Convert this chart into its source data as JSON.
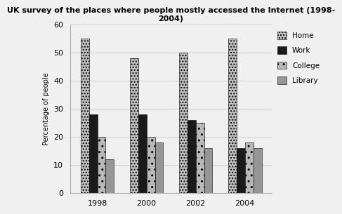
{
  "title": "UK survey of the places where people mostly accessed the Internet (1998-\n2004)",
  "ylabel": "Percentage of people",
  "years": [
    1998,
    2000,
    2002,
    2004
  ],
  "categories": [
    "Home",
    "Work",
    "College",
    "Library"
  ],
  "values": {
    "Home": [
      55,
      48,
      50,
      55
    ],
    "Work": [
      28,
      28,
      26,
      16
    ],
    "College": [
      20,
      20,
      25,
      18
    ],
    "Library": [
      12,
      18,
      16,
      16
    ]
  },
  "ylim": [
    0,
    60
  ],
  "yticks": [
    0,
    10,
    20,
    30,
    40,
    50,
    60
  ],
  "bar_width": 0.17,
  "background_color": "#f0f0f0",
  "grid_color": "#cccccc",
  "hatch_patterns": [
    "....",
    "",
    "....",
    "####"
  ],
  "bar_edge_color": "#000000",
  "bar_face_colors": [
    "#c8c8c8",
    "#1a1a1a",
    "#b0b0b0",
    "#909090"
  ],
  "title_fontsize": 8,
  "axis_label_fontsize": 7,
  "tick_fontsize": 8,
  "legend_fontsize": 7.5
}
